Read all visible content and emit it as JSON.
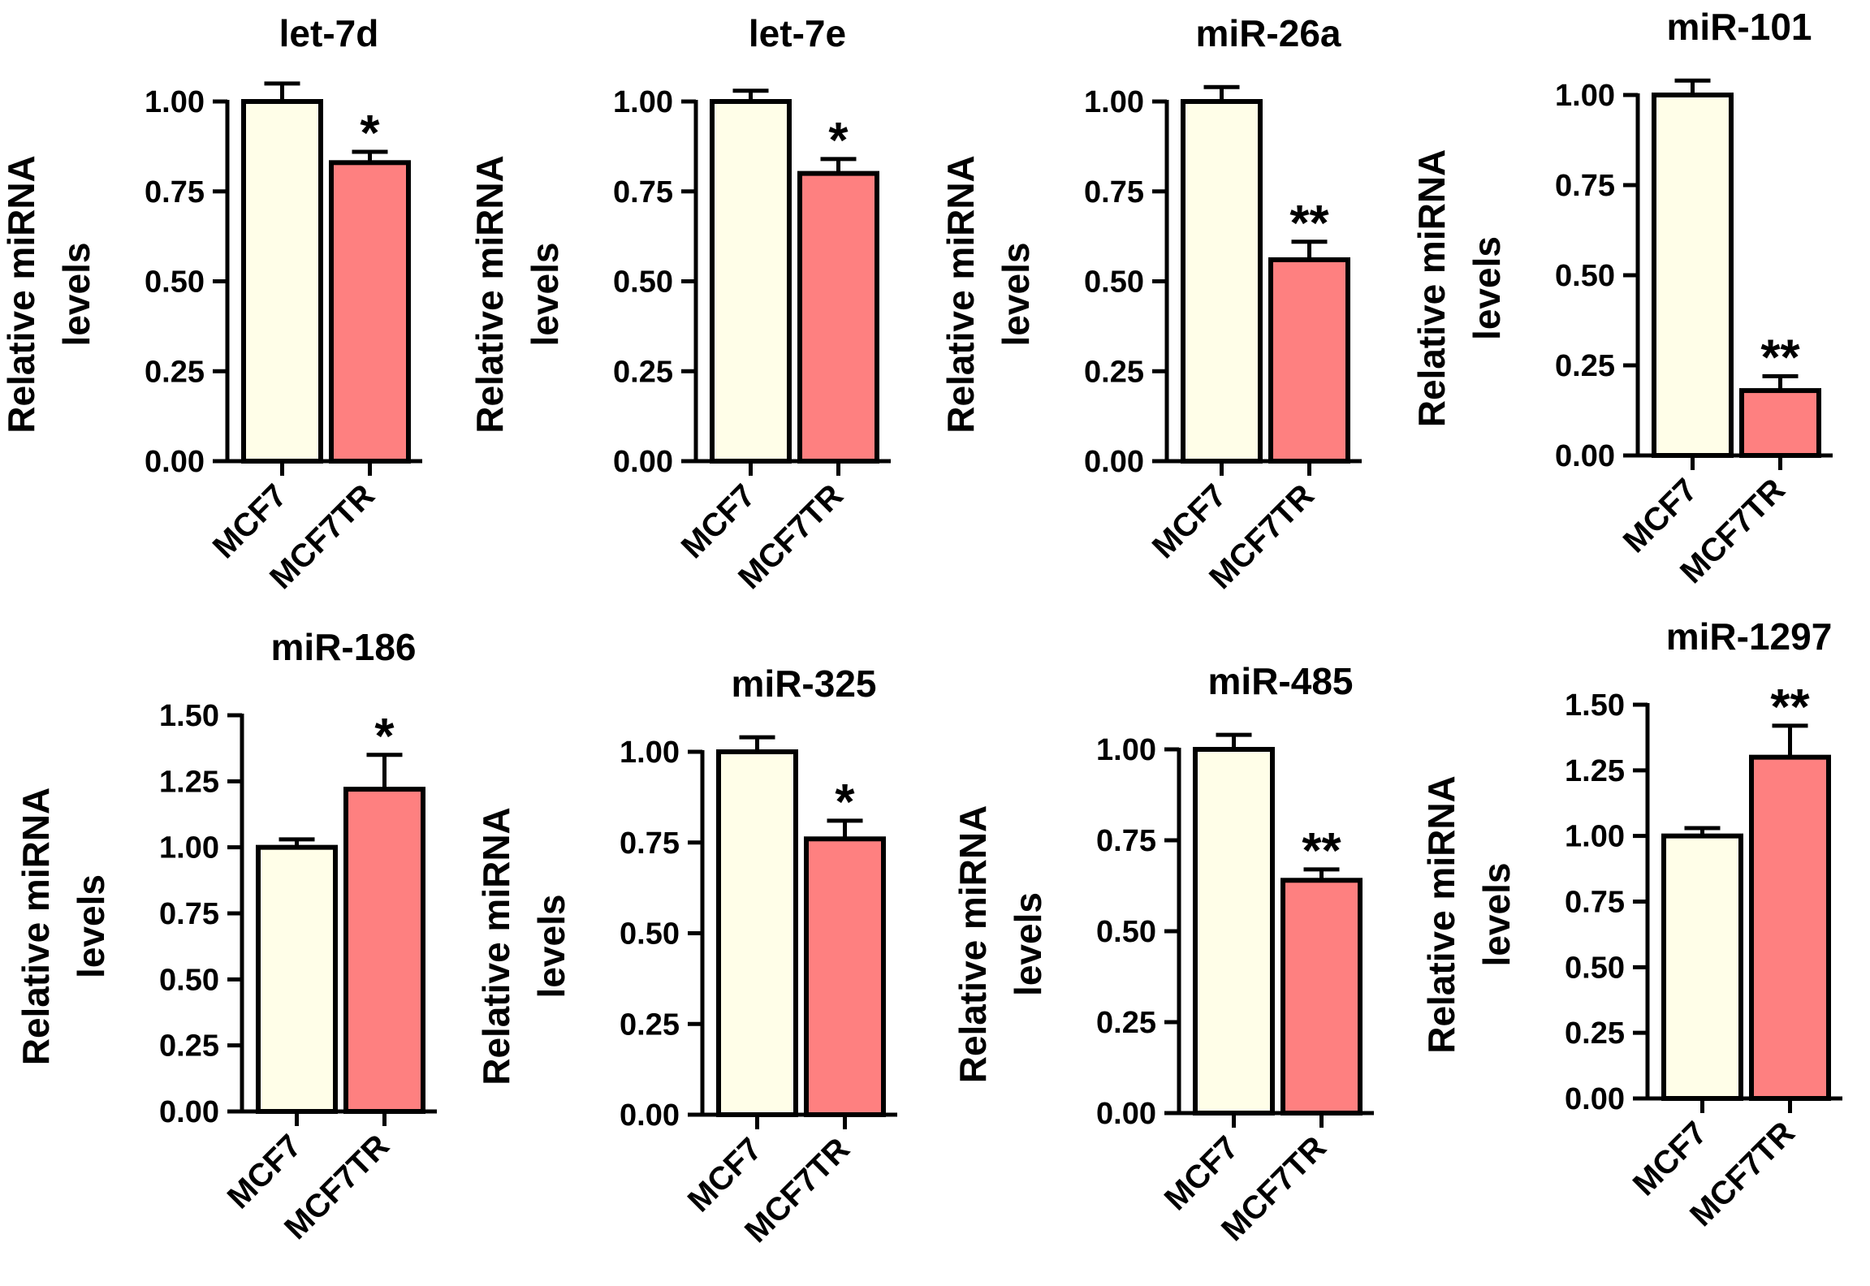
{
  "chart_data": [
    {
      "type": "bar",
      "title": "let-7d",
      "ylabel_line1": "Relative miRNA",
      "ylabel_line2": "levels",
      "categories": [
        "MCF7",
        "MCF7TR"
      ],
      "values": [
        1.0,
        0.83
      ],
      "errors": [
        0.05,
        0.03
      ],
      "significance": [
        "",
        "*"
      ],
      "ylim": [
        0,
        1.0
      ],
      "yticks": [
        "0.00",
        "0.25",
        "0.50",
        "0.75",
        "1.00"
      ]
    },
    {
      "type": "bar",
      "title": "let-7e",
      "ylabel_line1": "Relative miRNA",
      "ylabel_line2": "levels",
      "categories": [
        "MCF7",
        "MCF7TR"
      ],
      "values": [
        1.0,
        0.8
      ],
      "errors": [
        0.03,
        0.04
      ],
      "significance": [
        "",
        "*"
      ],
      "ylim": [
        0,
        1.0
      ],
      "yticks": [
        "0.00",
        "0.25",
        "0.50",
        "0.75",
        "1.00"
      ]
    },
    {
      "type": "bar",
      "title": "miR-26a",
      "ylabel_line1": "Relative miRNA",
      "ylabel_line2": "levels",
      "categories": [
        "MCF7",
        "MCF7TR"
      ],
      "values": [
        1.0,
        0.56
      ],
      "errors": [
        0.04,
        0.05
      ],
      "significance": [
        "",
        "**"
      ],
      "ylim": [
        0,
        1.0
      ],
      "yticks": [
        "0.00",
        "0.25",
        "0.50",
        "0.75",
        "1.00"
      ]
    },
    {
      "type": "bar",
      "title": "miR-101",
      "ylabel_line1": "Relative miRNA",
      "ylabel_line2": "levels",
      "categories": [
        "MCF7",
        "MCF7TR"
      ],
      "values": [
        1.0,
        0.18
      ],
      "errors": [
        0.04,
        0.04
      ],
      "significance": [
        "",
        "**"
      ],
      "ylim": [
        0,
        1.0
      ],
      "yticks": [
        "0.00",
        "0.25",
        "0.50",
        "0.75",
        "1.00"
      ]
    },
    {
      "type": "bar",
      "title": "miR-186",
      "ylabel_line1": "Relative miRNA",
      "ylabel_line2": "levels",
      "categories": [
        "MCF7",
        "MCF7TR"
      ],
      "values": [
        1.0,
        1.22
      ],
      "errors": [
        0.03,
        0.13
      ],
      "significance": [
        "",
        "*"
      ],
      "ylim": [
        0,
        1.5
      ],
      "yticks": [
        "0.00",
        "0.25",
        "0.50",
        "0.75",
        "1.00",
        "1.25",
        "1.50"
      ]
    },
    {
      "type": "bar",
      "title": "miR-325",
      "ylabel_line1": "Relative miRNA",
      "ylabel_line2": "levels",
      "categories": [
        "MCF7",
        "MCF7TR"
      ],
      "values": [
        1.0,
        0.76
      ],
      "errors": [
        0.04,
        0.05
      ],
      "significance": [
        "",
        "*"
      ],
      "ylim": [
        0,
        1.0
      ],
      "yticks": [
        "0.00",
        "0.25",
        "0.50",
        "0.75",
        "1.00"
      ]
    },
    {
      "type": "bar",
      "title": "miR-485",
      "ylabel_line1": "Relative miRNA",
      "ylabel_line2": "levels",
      "categories": [
        "MCF7",
        "MCF7TR"
      ],
      "values": [
        1.0,
        0.64
      ],
      "errors": [
        0.04,
        0.03
      ],
      "significance": [
        "",
        "**"
      ],
      "ylim": [
        0,
        1.0
      ],
      "yticks": [
        "0.00",
        "0.25",
        "0.50",
        "0.75",
        "1.00"
      ]
    },
    {
      "type": "bar",
      "title": "miR-1297",
      "ylabel_line1": "Relative miRNA",
      "ylabel_line2": "levels",
      "categories": [
        "MCF7",
        "MCF7TR"
      ],
      "values": [
        1.0,
        1.3
      ],
      "errors": [
        0.03,
        0.12
      ],
      "significance": [
        "",
        "**"
      ],
      "ylim": [
        0,
        1.5
      ],
      "yticks": [
        "0.00",
        "0.25",
        "0.50",
        "0.75",
        "1.00",
        "1.25",
        "1.50"
      ]
    }
  ],
  "colors": {
    "MCF7": "#FFFEE8",
    "MCF7TR": "#FE8080",
    "axis": "#000000"
  }
}
